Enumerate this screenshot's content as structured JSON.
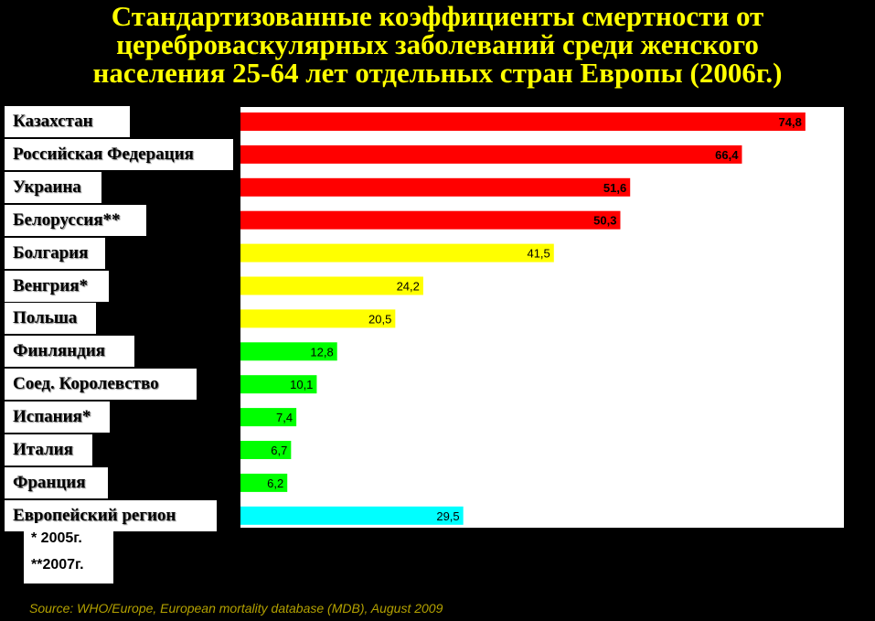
{
  "title_lines": [
    "Стандартизованные коэффициенты смертности от",
    "цереброваскулярных заболеваний среди женского",
    "населения 25-64 лет отдельных стран Европы (2006г.)"
  ],
  "chart_data": {
    "type": "bar",
    "orientation": "horizontal",
    "categories": [
      "Казахстан",
      "Российская Федерация",
      "Украина",
      "Белоруссия**",
      "Болгария",
      "Венгрия*",
      "Польша",
      "Финляндия",
      "Соед. Королевство",
      "Испания*",
      "Италия",
      "Франция",
      "Европейский регион"
    ],
    "values": [
      74.8,
      66.4,
      51.6,
      50.3,
      41.5,
      24.2,
      20.5,
      12.8,
      10.1,
      7.4,
      6.7,
      6.2,
      29.5
    ],
    "value_labels": [
      "74,8",
      "66,4",
      "51,6",
      "50,3",
      "41,5",
      "24,2",
      "20,5",
      "12,8",
      "10,1",
      "7,4",
      "6,7",
      "6,2",
      "29,5"
    ],
    "colors": [
      "#ff0000",
      "#ff0000",
      "#ff0000",
      "#ff0000",
      "#ffff00",
      "#ffff00",
      "#ffff00",
      "#00ff00",
      "#00ff00",
      "#00ff00",
      "#00ff00",
      "#00ff00",
      "#00ffff"
    ],
    "xlim": [
      0,
      80
    ],
    "grid": false,
    "legend": "none"
  },
  "notes": [
    "* 2005г.",
    "**2007г."
  ],
  "source": "Source: WHO/Europe, European mortality database (MDB), August  2009"
}
